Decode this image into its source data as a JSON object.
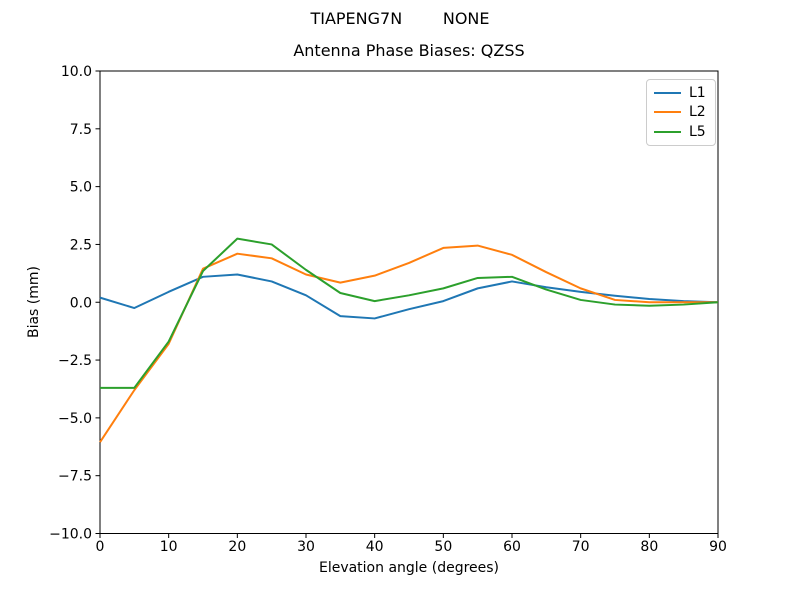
{
  "window": {
    "suptitle": "TIAPENG7N        NONE"
  },
  "chart_data": {
    "type": "line",
    "title": "Antenna Phase Biases: QZSS",
    "xlabel": "Elevation angle (degrees)",
    "ylabel": "Bias (mm)",
    "xlim": [
      0,
      90
    ],
    "ylim": [
      -10,
      10
    ],
    "grid": false,
    "legend_position": "upper right",
    "xticks": {
      "values": [
        0,
        10,
        20,
        30,
        40,
        50,
        60,
        70,
        80,
        90
      ],
      "labels": [
        "0",
        "10",
        "20",
        "30",
        "40",
        "50",
        "60",
        "70",
        "80",
        "90"
      ]
    },
    "yticks": {
      "values": [
        10,
        7.5,
        5,
        2.5,
        0,
        -2.5,
        -5,
        -7.5,
        -10
      ],
      "labels": [
        "10.0",
        "7.5",
        "5.0",
        "2.5",
        "0.0",
        "−2.5",
        "−5.0",
        "−7.5",
        "−10.0"
      ]
    },
    "x": [
      0,
      5,
      10,
      15,
      20,
      25,
      30,
      35,
      40,
      45,
      50,
      55,
      60,
      65,
      70,
      75,
      80,
      85,
      90
    ],
    "series": [
      {
        "name": "L1",
        "color": "#1f77b4",
        "values": [
          0.2,
          -0.25,
          0.45,
          1.1,
          1.2,
          0.9,
          0.3,
          -0.6,
          -0.7,
          -0.3,
          0.05,
          0.6,
          0.9,
          0.65,
          0.45,
          0.28,
          0.14,
          0.05,
          0.0
        ]
      },
      {
        "name": "L2",
        "color": "#ff7f0e",
        "values": [
          -6.05,
          -3.8,
          -1.8,
          1.45,
          2.1,
          1.9,
          1.2,
          0.85,
          1.15,
          1.7,
          2.35,
          2.45,
          2.05,
          1.3,
          0.6,
          0.1,
          0.0,
          0.0,
          0.0
        ]
      },
      {
        "name": "L5",
        "color": "#2ca02c",
        "values": [
          -3.7,
          -3.7,
          -1.7,
          1.35,
          2.75,
          2.5,
          1.4,
          0.4,
          0.05,
          0.3,
          0.6,
          1.05,
          1.1,
          0.55,
          0.1,
          -0.1,
          -0.15,
          -0.1,
          0.0
        ]
      }
    ]
  }
}
